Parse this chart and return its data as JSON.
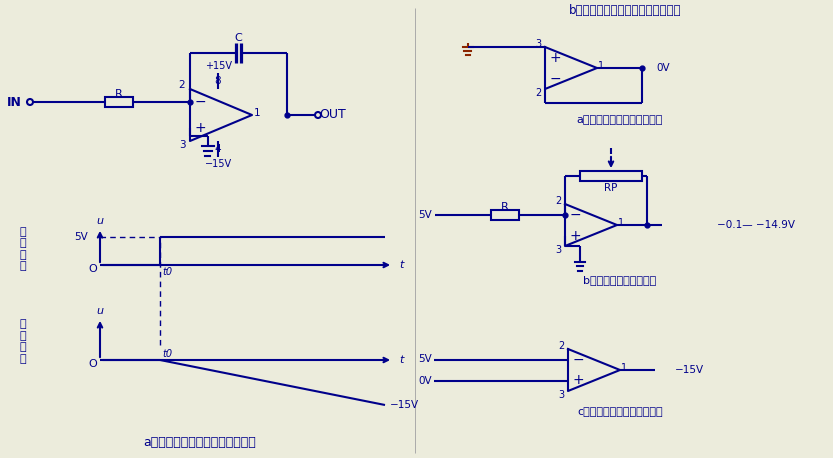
{
  "bg_color": "#ececdc",
  "blue": "#00008B",
  "brown": "#8B2500",
  "lw": 1.5,
  "figw": 8.33,
  "figh": 4.58,
  "dpi": 100,
  "title_left": "a、积分电路的构成及信号波形图",
  "title_right": "b、积分电路工作过程中的变身调调",
  "sub_a": "a、变身电路一：电压跟随器",
  "sub_b": "b、变身电路二：放大器",
  "sub_c": "c、变身电路三：电压比较器",
  "label_in_signal": "输入信号",
  "label_out_signal": "输出信号"
}
